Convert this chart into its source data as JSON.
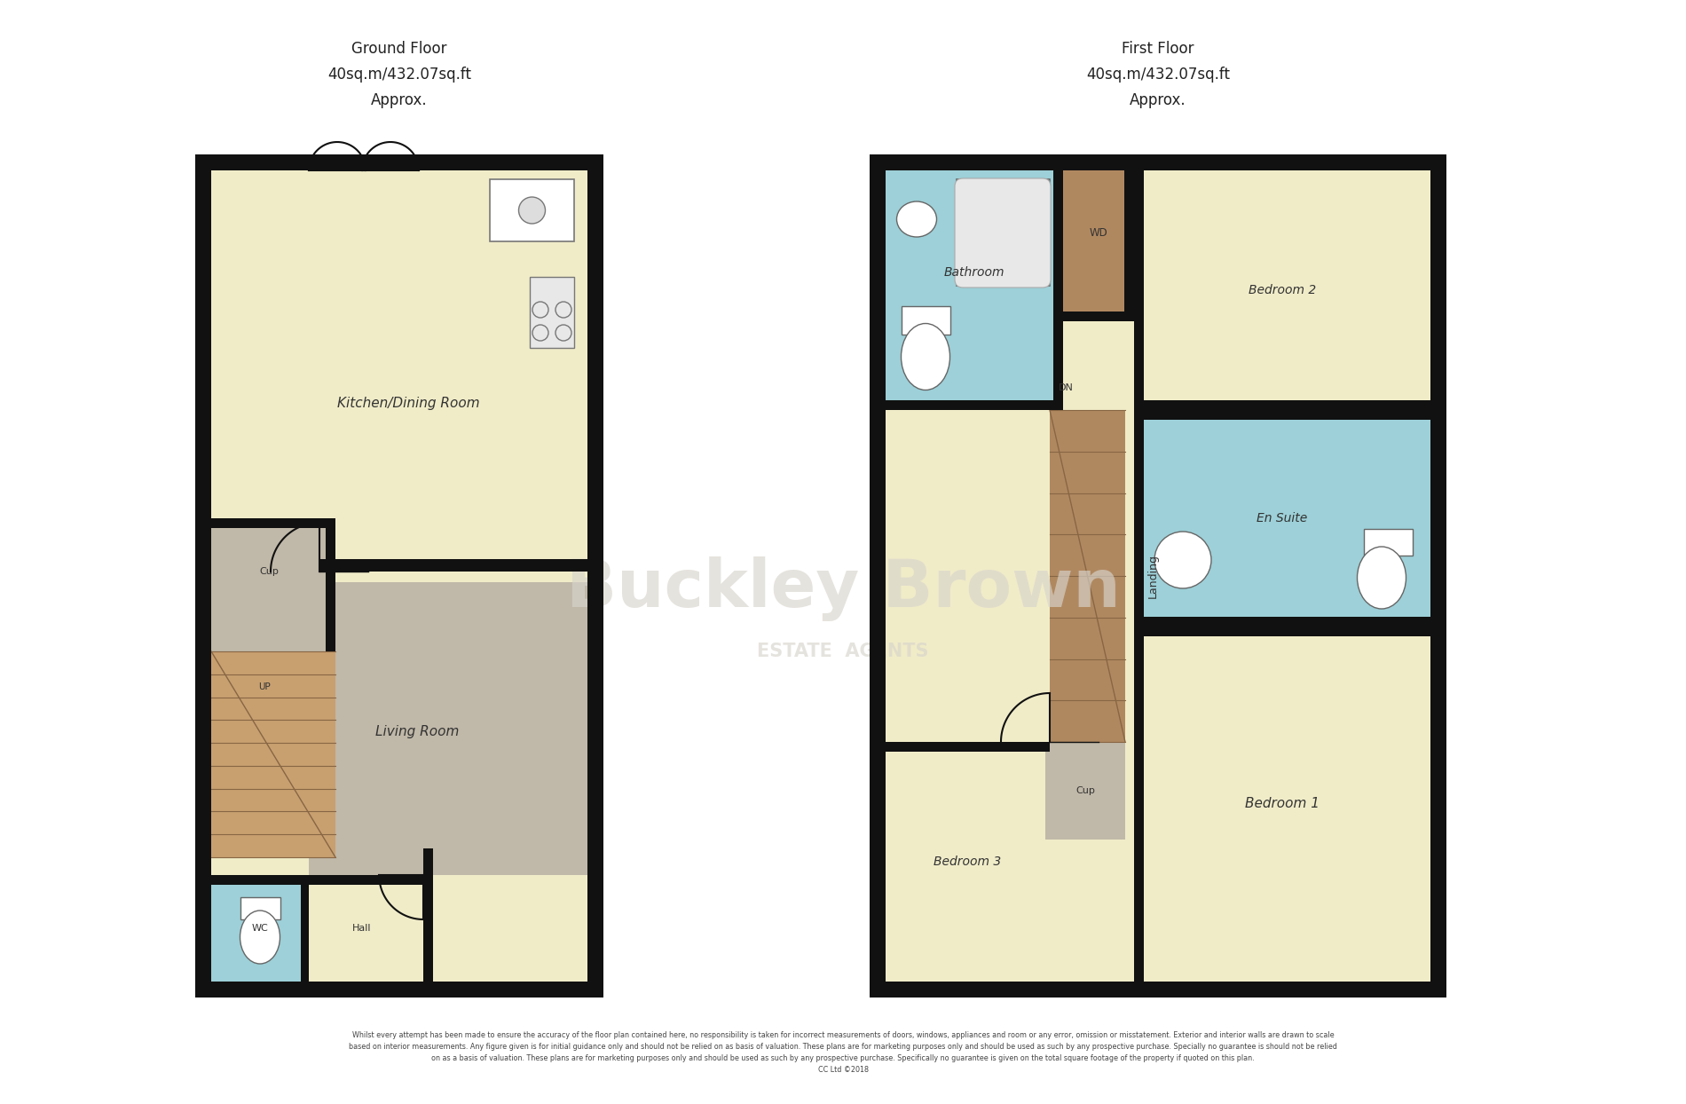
{
  "bg_color": "#ffffff",
  "wall_color": "#111111",
  "room_yellow": "#f0ecc8",
  "room_blue": "#9dd0d8",
  "room_brown": "#b08860",
  "room_gray": "#c0b8a8",
  "room_lt_brown": "#c8a070",
  "watermark_color": "#d8d4cc",
  "title_color": "#222222",
  "ground_floor_title": "Ground Floor\n40sq.m/432.07sq.ft\nApprox.",
  "first_floor_title": "First Floor\n40sq.m/432.07sq.ft\nApprox.",
  "disclaimer_line1": "Whilst every attempt has been made to ensure the accuracy of the floor plan contained here, no responsibility is taken for incorrect measurements of doors, windows, appliances and room or any error, omission or misstatement. Exterior and interior walls are drawn to scale",
  "disclaimer_line2": "based on interior measurements. Any figure given is for initial guidance only and should not be relied on as basis of valuation. These plans are for marketing purposes only and should be used as such by any prospective purchase. Specially no guarantee is should not be relied",
  "disclaimer_line3": "on as a basis of valuation. These plans are for marketing purposes only and should be used as such by any prospective purchase. Specifically no guarantee is given on the total square footage of the property if quoted on this plan.",
  "disclaimer_line4": "CC Ltd ©2018"
}
